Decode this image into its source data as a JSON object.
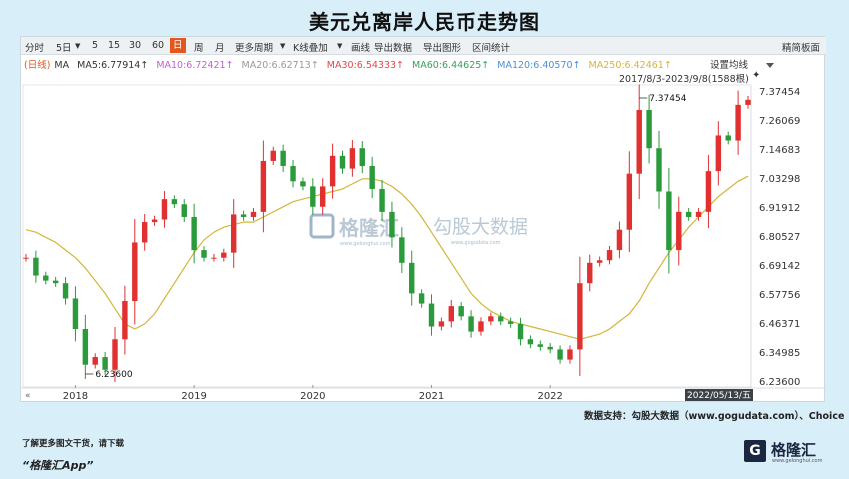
{
  "title": "美元兑离岸人民币走势图",
  "toolbar": {
    "items": [
      "分时",
      "5日",
      "▼",
      "5",
      "15",
      "30",
      "60",
      "日",
      "周",
      "月",
      "更多周期",
      "▼",
      "K线叠加",
      "▼",
      "画线",
      "导出数据",
      "导出图形",
      "区间统计"
    ],
    "active": "日",
    "right": "精简板面"
  },
  "ma_row": {
    "period": "(日线)",
    "ma_label": "MA",
    "items": [
      {
        "text": "MA5:6.77914↑",
        "color": "#333333"
      },
      {
        "text": "MA10:6.72421↑",
        "color": "#c35fd6"
      },
      {
        "text": "MA20:6.62713↑",
        "color": "#9a9a9a"
      },
      {
        "text": "MA30:6.54333↑",
        "color": "#e04848"
      },
      {
        "text": "MA60:6.44625↑",
        "color": "#3aa05a"
      },
      {
        "text": "MA120:6.40570↑",
        "color": "#4a90d9"
      },
      {
        "text": "MA250:6.42461↑",
        "color": "#d4b53a"
      }
    ]
  },
  "settings_label": "设置均线",
  "range_label": "2017/8/3-2023/9/8(1588根)",
  "pin_icon": "pin-icon",
  "watermark": {
    "brand": "格隆汇",
    "brand_sub": "www.gelonghui.com",
    "data": "勾股大数据",
    "data_sub": "www.gogudata.com"
  },
  "source": "数据支持：勾股大数据（www.gogudata.com）、Choice",
  "footer": {
    "line1": "了解更多图文干货，请下载",
    "line2": "“格隆汇App”"
  },
  "logo": {
    "mark": "G",
    "name": "格隆汇",
    "sub": "www.gelonghui.com"
  },
  "chart_data": {
    "type": "line",
    "subtype": "candlestick with moving averages",
    "x_ticks": [
      "2018",
      "2019",
      "2020",
      "2021",
      "2022"
    ],
    "y_ticks": [
      7.37454,
      7.26069,
      7.14683,
      7.03298,
      6.91912,
      6.80527,
      6.69142,
      6.57756,
      6.46371,
      6.34985,
      6.236
    ],
    "ylim": [
      6.236,
      7.37454
    ],
    "annotations": [
      {
        "label": "7.37454",
        "x": "2022-10",
        "y": 7.37454
      },
      {
        "label": "6.23600",
        "x": "2018-02",
        "y": 6.236
      }
    ],
    "crosshair_date": "2022/05/13/五",
    "up_color": "#e03030",
    "down_color": "#2a9a3a",
    "x": [
      "2017-08",
      "2017-09",
      "2017-10",
      "2017-11",
      "2017-12",
      "2018-01",
      "2018-02",
      "2018-03",
      "2018-04",
      "2018-05",
      "2018-06",
      "2018-07",
      "2018-08",
      "2018-09",
      "2018-10",
      "2018-11",
      "2018-12",
      "2019-01",
      "2019-02",
      "2019-03",
      "2019-04",
      "2019-05",
      "2019-06",
      "2019-07",
      "2019-08",
      "2019-09",
      "2019-10",
      "2019-11",
      "2019-12",
      "2020-01",
      "2020-02",
      "2020-03",
      "2020-04",
      "2020-05",
      "2020-06",
      "2020-07",
      "2020-08",
      "2020-09",
      "2020-10",
      "2020-11",
      "2020-12",
      "2021-01",
      "2021-02",
      "2021-03",
      "2021-04",
      "2021-05",
      "2021-06",
      "2021-07",
      "2021-08",
      "2021-09",
      "2021-10",
      "2021-11",
      "2021-12",
      "2022-01",
      "2022-02",
      "2022-03",
      "2022-04",
      "2022-05",
      "2022-06",
      "2022-07",
      "2022-08",
      "2022-09",
      "2022-10",
      "2022-11",
      "2022-12",
      "2023-01",
      "2023-02",
      "2023-03",
      "2023-04",
      "2023-05",
      "2023-06",
      "2023-07",
      "2023-08",
      "2023-09"
    ],
    "series": [
      {
        "name": "K线",
        "values": [
          6.72,
          6.65,
          6.63,
          6.62,
          6.56,
          6.44,
          6.3,
          6.33,
          6.28,
          6.4,
          6.55,
          6.78,
          6.86,
          6.87,
          6.95,
          6.93,
          6.88,
          6.75,
          6.72,
          6.72,
          6.74,
          6.89,
          6.88,
          6.9,
          7.1,
          7.14,
          7.08,
          7.02,
          7.0,
          6.92,
          7.0,
          7.12,
          7.07,
          7.15,
          7.08,
          6.99,
          6.9,
          6.8,
          6.7,
          6.58,
          6.54,
          6.45,
          6.47,
          6.53,
          6.49,
          6.43,
          6.47,
          6.49,
          6.47,
          6.46,
          6.4,
          6.38,
          6.37,
          6.36,
          6.32,
          6.36,
          6.62,
          6.7,
          6.71,
          6.75,
          6.83,
          7.05,
          7.3,
          7.15,
          6.98,
          6.75,
          6.9,
          6.88,
          6.9,
          7.06,
          7.2,
          7.18,
          7.32,
          7.34
        ]
      },
      {
        "name": "MA250",
        "values": [
          6.83,
          6.82,
          6.8,
          6.78,
          6.75,
          6.72,
          6.68,
          6.63,
          6.58,
          6.52,
          6.46,
          6.44,
          6.46,
          6.5,
          6.56,
          6.62,
          6.68,
          6.74,
          6.79,
          6.82,
          6.84,
          6.85,
          6.86,
          6.86,
          6.88,
          6.9,
          6.92,
          6.94,
          6.95,
          6.96,
          6.97,
          6.98,
          6.99,
          7.01,
          7.03,
          7.03,
          7.02,
          7.0,
          6.97,
          6.93,
          6.88,
          6.82,
          6.76,
          6.7,
          6.64,
          6.58,
          6.54,
          6.51,
          6.49,
          6.47,
          6.46,
          6.45,
          6.44,
          6.43,
          6.42,
          6.41,
          6.4,
          6.41,
          6.42,
          6.44,
          6.47,
          6.5,
          6.55,
          6.62,
          6.68,
          6.74,
          6.79,
          6.84,
          6.88,
          6.92,
          6.96,
          6.99,
          7.02,
          7.04
        ]
      }
    ]
  }
}
